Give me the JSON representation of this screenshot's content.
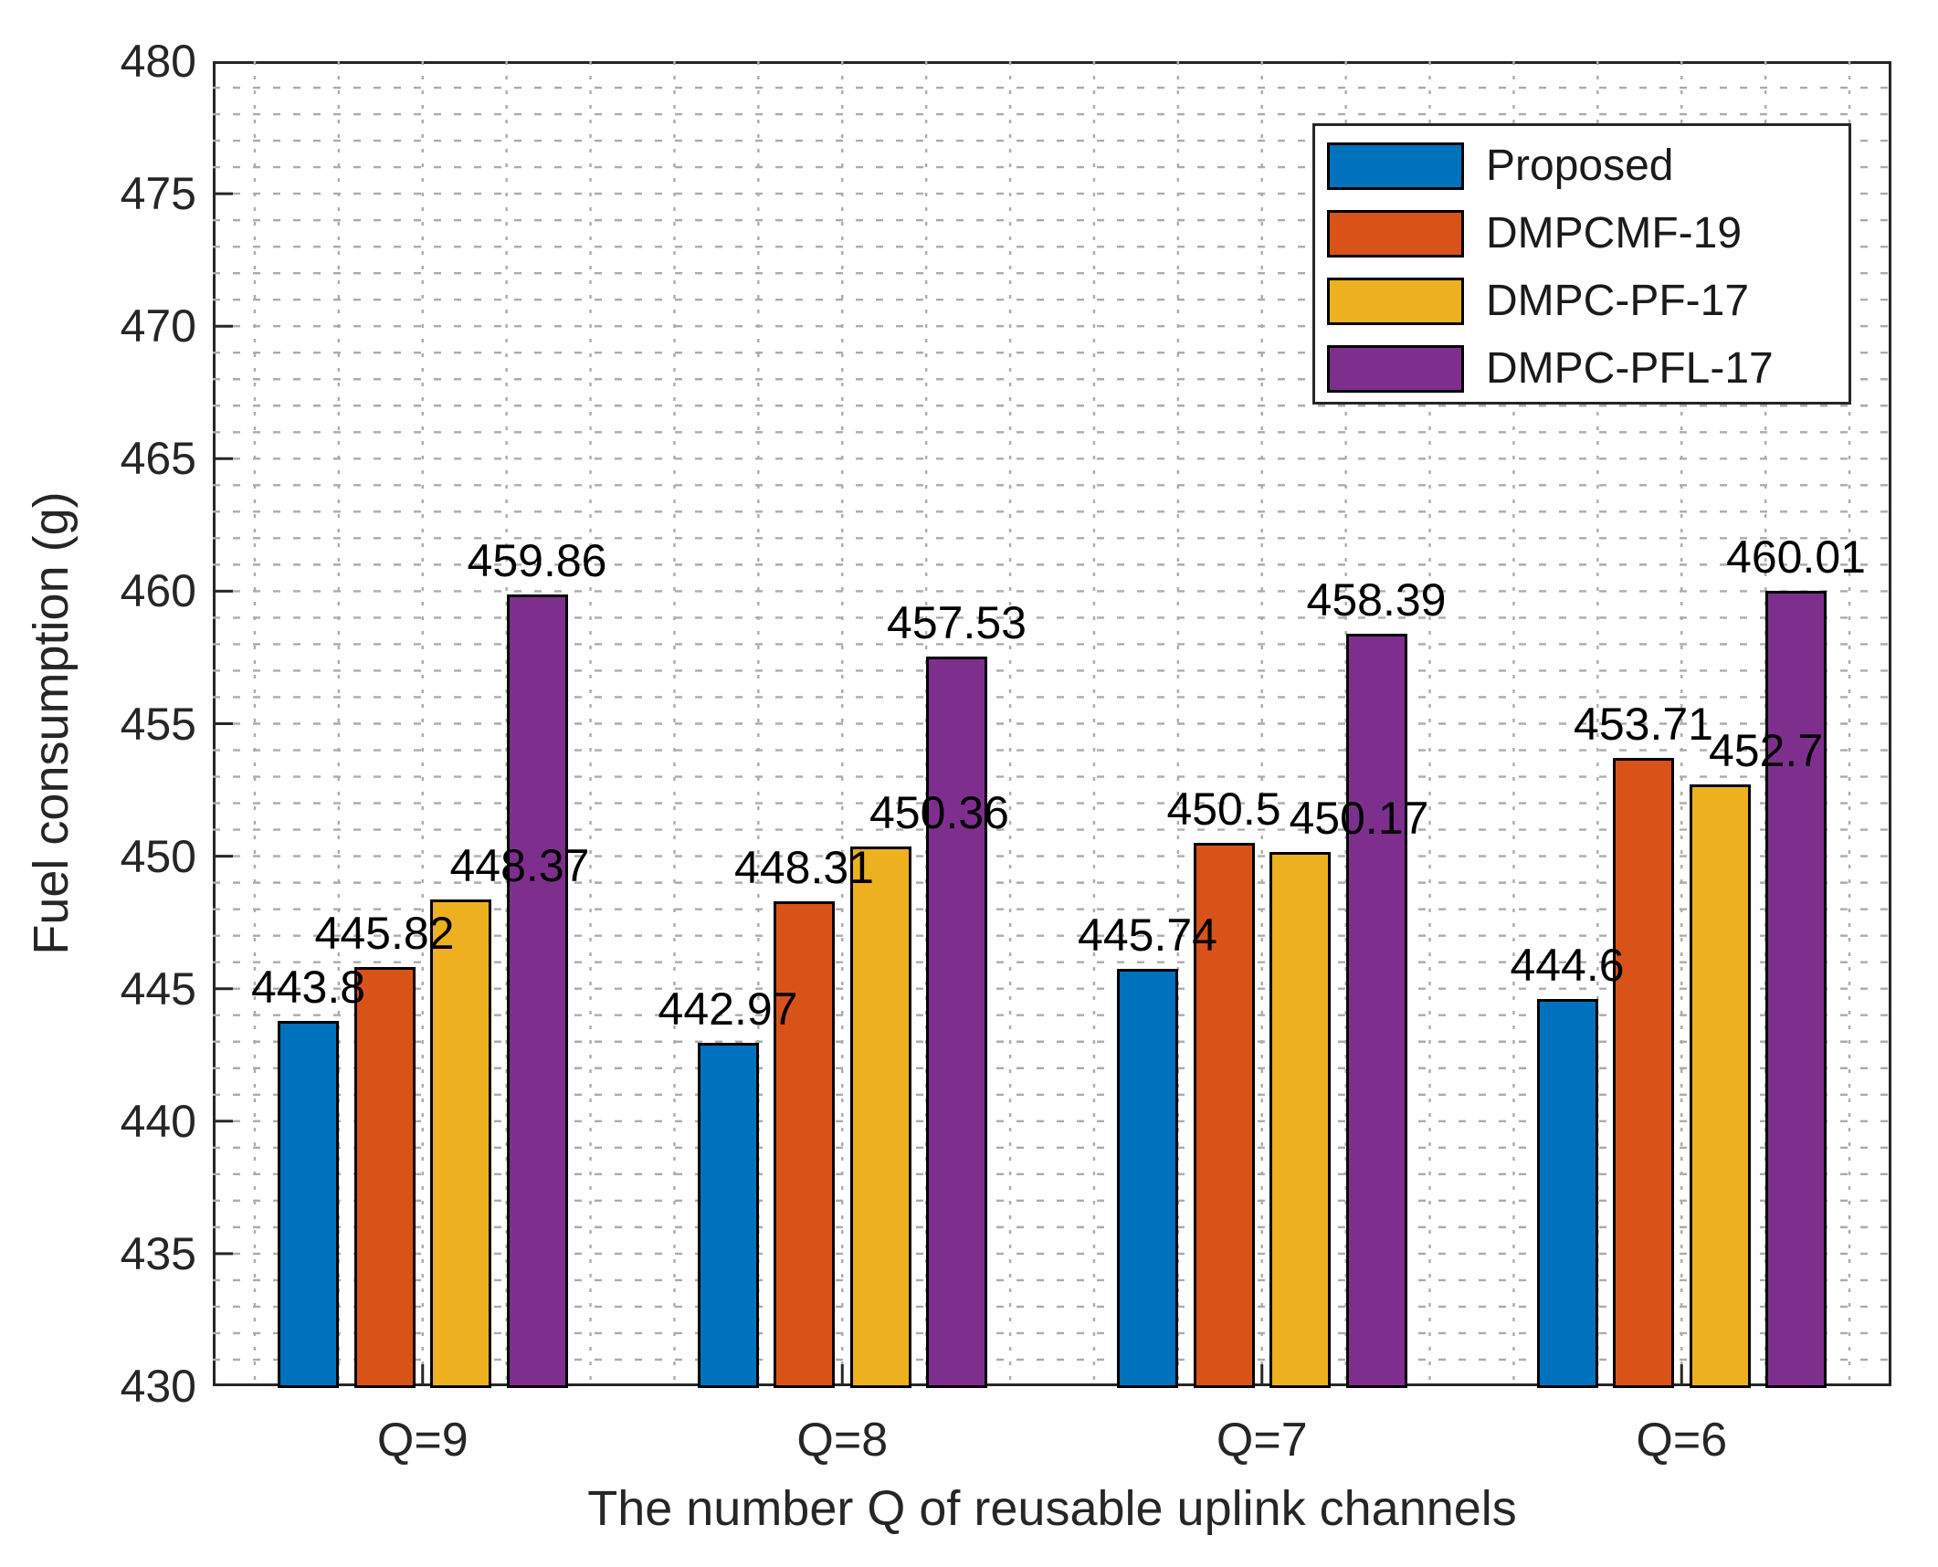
{
  "chart_data": {
    "type": "bar",
    "title": "",
    "xlabel": "The number Q of reusable uplink channels",
    "ylabel": "Fuel consumption (g)",
    "categories": [
      "Q=9",
      "Q=8",
      "Q=7",
      "Q=6"
    ],
    "series": [
      {
        "name": "Proposed",
        "color": "#0072BD",
        "values": [
          443.8,
          442.97,
          445.74,
          444.6
        ],
        "value_labels": [
          "443.8",
          "442.97",
          "445.74",
          "444.6"
        ]
      },
      {
        "name": "DMPCMF-19",
        "color": "#D95319",
        "values": [
          445.82,
          448.31,
          450.5,
          453.71
        ],
        "value_labels": [
          "445.82",
          "448.31",
          "450.5",
          "453.71"
        ]
      },
      {
        "name": "DMPC-PF-17",
        "color": "#EDB120",
        "values": [
          448.37,
          450.36,
          450.17,
          452.7
        ],
        "value_labels": [
          "448.37",
          "450.36",
          "450.17",
          "452.7"
        ]
      },
      {
        "name": "DMPC-PFL-17",
        "color": "#7E2F8E",
        "values": [
          459.86,
          457.53,
          458.39,
          460.01
        ],
        "value_labels": [
          "459.86",
          "457.53",
          "458.39",
          "460.01"
        ]
      }
    ],
    "ylim": [
      430,
      480
    ],
    "yticks": [
      430,
      435,
      440,
      445,
      450,
      455,
      460,
      465,
      470,
      475,
      480
    ],
    "grid": {
      "style": "dotted",
      "y_minor_step": 1,
      "x_minor_per_category": 5
    },
    "legend": {
      "position": "top-right",
      "border": true
    },
    "colors": {
      "axis": "#262626",
      "grid": "#ababab",
      "text": "#1a1a1a",
      "background": "#ffffff"
    }
  }
}
